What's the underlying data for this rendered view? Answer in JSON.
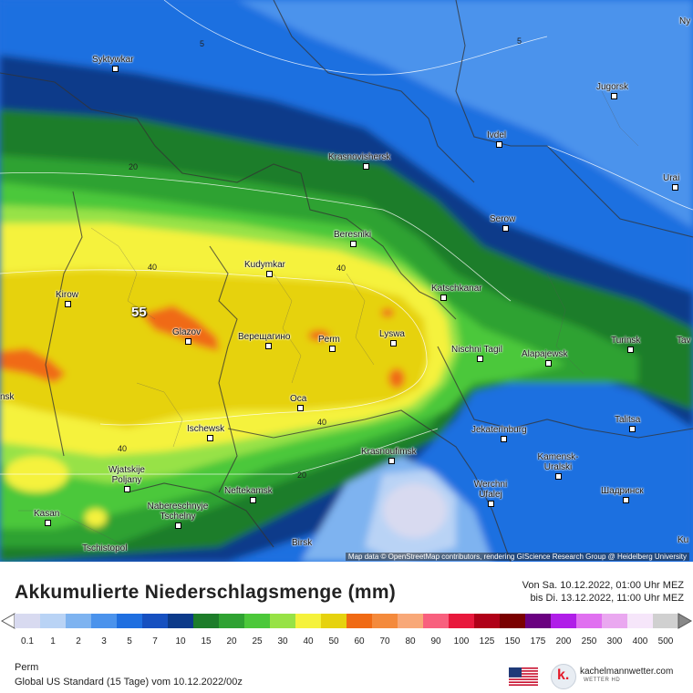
{
  "map": {
    "attribution": "Map data © OpenStreetMap contributors, rendering GIScience Research Group @ Heidelberg University",
    "peak_value": "55",
    "cities": [
      {
        "name": "Syktywkar"
      },
      {
        "name": "Jugorsk"
      },
      {
        "name": "Ivdel"
      },
      {
        "name": "Krasnovishersk"
      },
      {
        "name": "Urai"
      },
      {
        "name": "Serow"
      },
      {
        "name": "Beresniki"
      },
      {
        "name": "Kudymkar"
      },
      {
        "name": "Kirow"
      },
      {
        "name": "Glazov"
      },
      {
        "name": "Верещагино"
      },
      {
        "name": "Perm"
      },
      {
        "name": "Lyswa"
      },
      {
        "name": "Katschkanar"
      },
      {
        "name": "Nischni Tagil"
      },
      {
        "name": "Alapajewsk"
      },
      {
        "name": "Turinsk"
      },
      {
        "name": "Talitsa"
      },
      {
        "name": "Oca"
      },
      {
        "name": "Ischewsk"
      },
      {
        "name": "Krasnoufimsk"
      },
      {
        "name": "Jekaterinburg"
      },
      {
        "name": "Kamensk-Uralski"
      },
      {
        "name": "Wjatskije Poljany"
      },
      {
        "name": "Neftekamsk"
      },
      {
        "name": "Werchni Ufalej"
      },
      {
        "name": "Шадринск"
      },
      {
        "name": "Naberesсhnyje Tschelny"
      },
      {
        "name": "Kasan"
      },
      {
        "name": "Tschistopol"
      },
      {
        "name": "Birsk"
      },
      {
        "name": "nsk"
      },
      {
        "name": "Tav"
      },
      {
        "name": "Ny"
      },
      {
        "name": "Ku"
      }
    ],
    "contours": [
      "5",
      "5",
      "20",
      "40",
      "40",
      "40",
      "40",
      "20"
    ]
  },
  "header": {
    "title": "Akkumulierte Niederschlagsmenge (mm)",
    "period_from": "Von Sa. 10.12.2022, 01:00 Uhr MEZ",
    "period_to": "bis Di. 13.12.2022, 11:00 Uhr MEZ"
  },
  "legend": {
    "ticks": [
      "0.1",
      "1",
      "2",
      "3",
      "5",
      "7",
      "10",
      "15",
      "20",
      "25",
      "30",
      "40",
      "50",
      "60",
      "70",
      "80",
      "90",
      "100",
      "125",
      "150",
      "175",
      "200",
      "250",
      "300",
      "400",
      "500"
    ],
    "colors": [
      "#d8daf0",
      "#b9d3f5",
      "#7eb3f0",
      "#4b93ec",
      "#1f6fe0",
      "#1650c0",
      "#0c3a8a",
      "#1d7d2a",
      "#2fa232",
      "#4cc83a",
      "#97e246",
      "#f5f23c",
      "#e6d20e",
      "#f06a14",
      "#f48a3c",
      "#f8a878",
      "#f8607e",
      "#e8183c",
      "#b00018",
      "#7a0000",
      "#6a0080",
      "#b01ee8",
      "#e070f0",
      "#eaa8f0",
      "#f6e6fa",
      "#d0d0d0"
    ]
  },
  "footer": {
    "location": "Perm",
    "model": "Global US Standard (15 Tage) vom  10.12.2022/00z",
    "brand": "kachelmannwetter.com",
    "brand_sub": "WETTER HD"
  }
}
